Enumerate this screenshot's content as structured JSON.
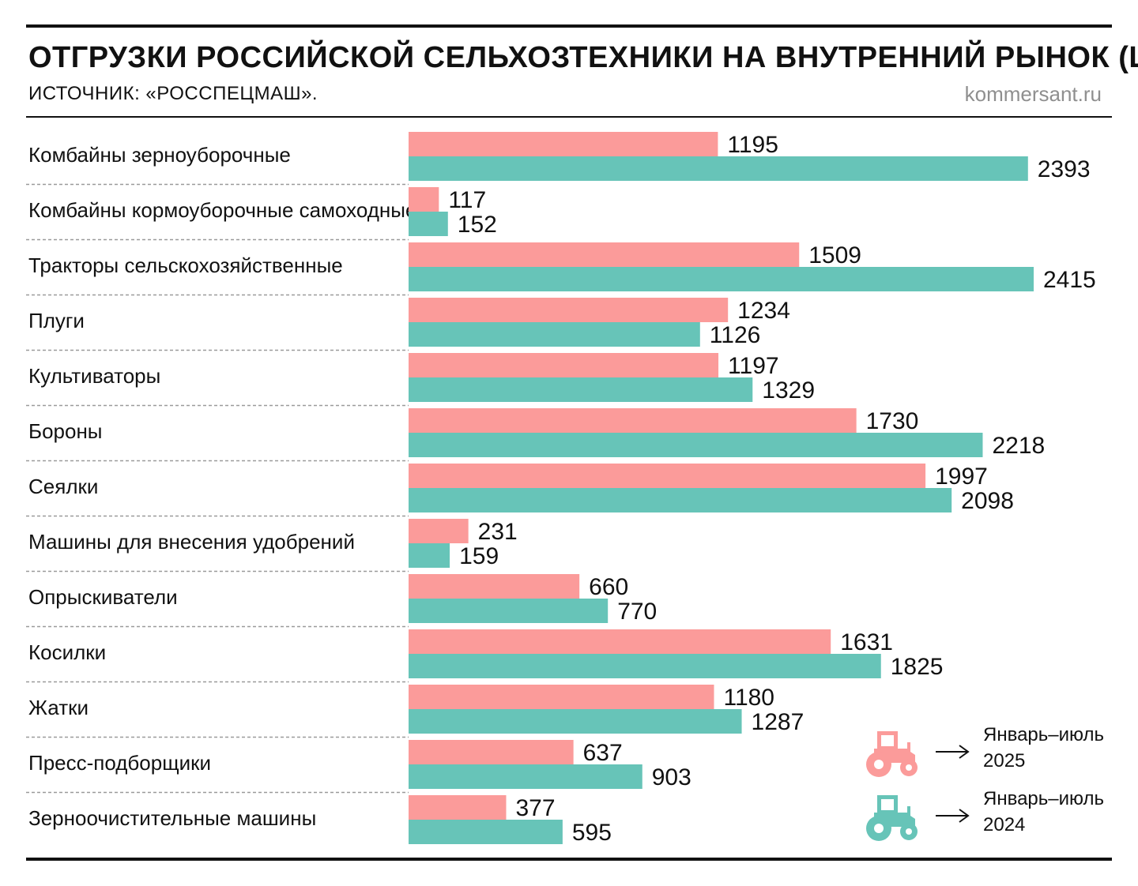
{
  "header": {
    "title": "ОТГРУЗКИ РОССИЙСКОЙ СЕЛЬХОЗТЕХНИКИ НА ВНУТРЕННИЙ РЫНОК (ШТ.)",
    "source": "ИСТОЧНИК: «РОССПЕЦМАШ».",
    "brand": "kommersant.ru"
  },
  "legend": {
    "s2025": {
      "line1": "Январь–июль",
      "line2": "2025",
      "icon": "tractor-icon"
    },
    "s2024": {
      "line1": "Январь–июль",
      "line2": "2024",
      "icon": "tractor-icon"
    }
  },
  "colors": {
    "s2025": "#fb9b9a",
    "s2024": "#67c4b8",
    "text": "#111111",
    "muted": "#8f8f8f"
  },
  "chart_data": {
    "type": "bar",
    "orientation": "horizontal",
    "title": "ОТГРУЗКИ РОССИЙСКОЙ СЕЛЬХОЗТЕХНИКИ НА ВНУТРЕННИЙ РЫНОК (ШТ.)",
    "categories": [
      "Комбайны зерноуборочные",
      "Комбайны кормоуборочные самоходные",
      "Тракторы сельскохозяйственные",
      "Плуги",
      "Культиваторы",
      "Бороны",
      "Сеялки",
      "Машины для внесения удобрений",
      "Опрыскиватели",
      "Косилки",
      "Жатки",
      "Пресс-подборщики",
      "Зерноочистительные машины"
    ],
    "series": [
      {
        "name": "Январь–июль 2025",
        "color": "#fb9b9a",
        "values": [
          1195,
          117,
          1509,
          1234,
          1197,
          1730,
          1997,
          231,
          660,
          1631,
          1180,
          637,
          377
        ]
      },
      {
        "name": "Январь–июль 2024",
        "color": "#67c4b8",
        "values": [
          2393,
          152,
          2415,
          1126,
          1329,
          2218,
          2098,
          159,
          770,
          1825,
          1287,
          903,
          595
        ]
      }
    ],
    "xlim": [
      0,
      2415
    ],
    "grid": false,
    "legend_position": "bottom-right"
  }
}
